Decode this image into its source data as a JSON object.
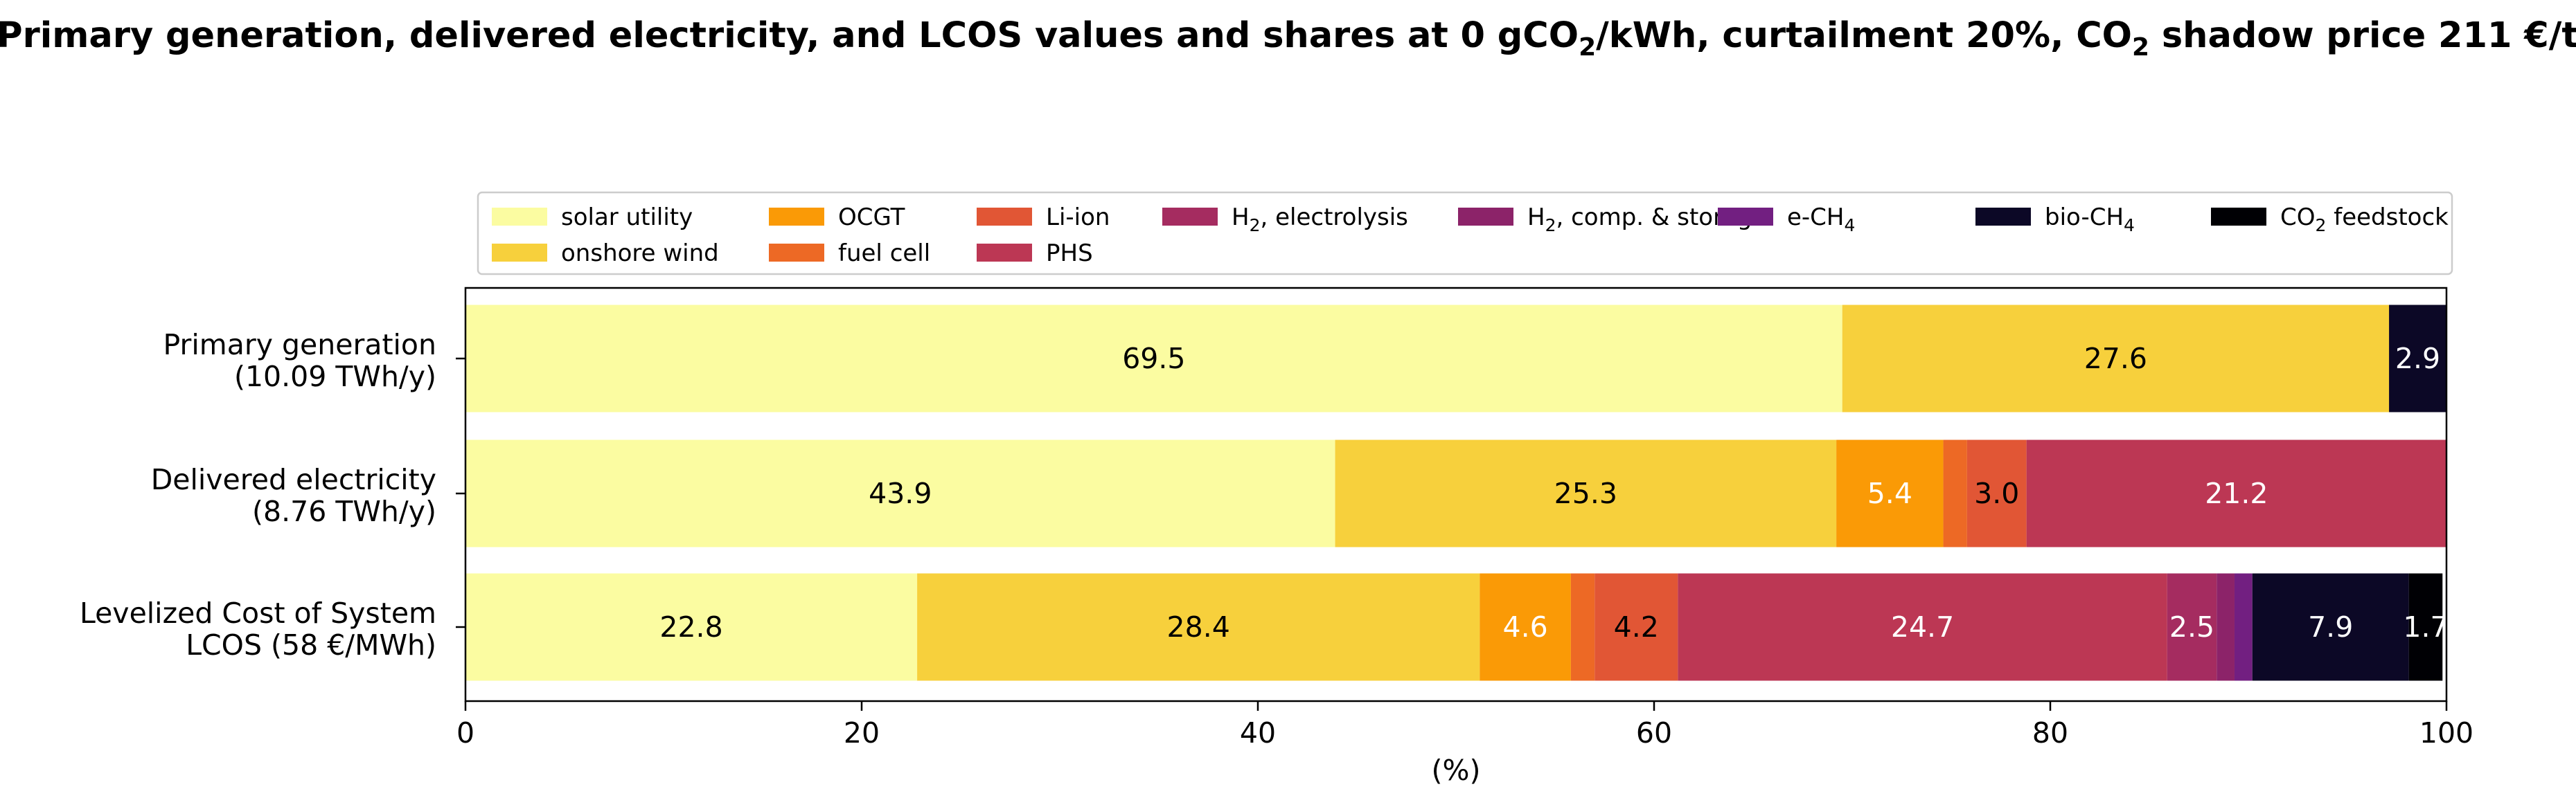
{
  "chart_data": {
    "type": "bar",
    "orientation": "horizontal",
    "stacked": true,
    "title_parts": [
      "Primary generation, delivered electricity, and LCOS values and shares at 0 gCO",
      "2",
      "/kWh, curtailment 20%, CO",
      "2",
      " shadow price 211 €/t"
    ],
    "xlabel": "(%)",
    "xlim": [
      0,
      100
    ],
    "xticks": [
      "0",
      "20",
      "40",
      "60",
      "80",
      "100"
    ],
    "legend_position": "top",
    "categories": [
      {
        "line1": "Primary generation",
        "line2": "(10.09 TWh/y)"
      },
      {
        "line1": "Delivered electricity",
        "line2": "(8.76 TWh/y)"
      },
      {
        "line1": "Levelized Cost of System",
        "line2": "LCOS  (58 €/MWh)"
      }
    ],
    "series": [
      {
        "key": "solar",
        "name": "solar utility",
        "color": "#fbfca1",
        "text_color": "#000000",
        "values": [
          69.5,
          43.9,
          22.8
        ],
        "labels": [
          "69.5",
          "43.9",
          "22.8"
        ]
      },
      {
        "key": "wind",
        "name": "onshore wind",
        "color": "#f7d03c",
        "text_color": "#000000",
        "values": [
          27.6,
          25.3,
          28.4
        ],
        "labels": [
          "27.6",
          "25.3",
          "28.4"
        ]
      },
      {
        "key": "ocgt",
        "name": "OCGT",
        "color": "#fa9a06",
        "text_color": "#ffffff",
        "values": [
          0,
          5.4,
          4.6
        ],
        "labels": [
          "",
          "5.4",
          "4.6"
        ]
      },
      {
        "key": "fuelcell",
        "name": "fuel cell",
        "color": "#ed6925",
        "text_color": "#000000",
        "values": [
          0,
          1.2,
          1.2
        ],
        "labels": [
          "",
          "",
          ""
        ]
      },
      {
        "key": "liion",
        "name": "Li-ion",
        "color": "#e15635",
        "text_color": "#000000",
        "values": [
          0,
          3.0,
          4.2
        ],
        "labels": [
          "",
          "3.0",
          "4.2"
        ]
      },
      {
        "key": "phs",
        "name": "PHS",
        "color": "#bc3754",
        "text_color": "#ffffff",
        "values": [
          0,
          21.2,
          24.7
        ],
        "labels": [
          "",
          "21.2",
          "24.7"
        ]
      },
      {
        "key": "h2el",
        "name_parts": [
          "H",
          "2",
          ", electrolysis"
        ],
        "color": "#a52c60",
        "text_color": "#ffffff",
        "values": [
          0,
          0,
          2.5
        ],
        "labels": [
          "",
          "",
          "2.5"
        ]
      },
      {
        "key": "h2cs",
        "name_parts": [
          "H",
          "2",
          ", comp. & storage"
        ],
        "color": "#8c2369",
        "text_color": "#ffffff",
        "values": [
          0,
          0,
          0.9
        ],
        "labels": [
          "",
          "",
          ""
        ]
      },
      {
        "key": "ech4",
        "name_parts": [
          "e-CH",
          "4",
          ""
        ],
        "color": "#721f81",
        "text_color": "#ffffff",
        "values": [
          0,
          0,
          0.9
        ],
        "labels": [
          "",
          "",
          ""
        ]
      },
      {
        "key": "biochi4",
        "name_parts": [
          "bio-CH",
          "4",
          ""
        ],
        "color": "#0c0826",
        "text_color": "#ffffff",
        "values": [
          2.9,
          0,
          7.9
        ],
        "labels": [
          "2.9",
          "",
          "7.9"
        ]
      },
      {
        "key": "co2",
        "name_parts": [
          "CO",
          "2",
          " feedstock"
        ],
        "color": "#000004",
        "text_color": "#ffffff",
        "values": [
          0,
          0,
          1.7
        ],
        "labels": [
          "",
          "",
          "1.7"
        ]
      }
    ]
  }
}
